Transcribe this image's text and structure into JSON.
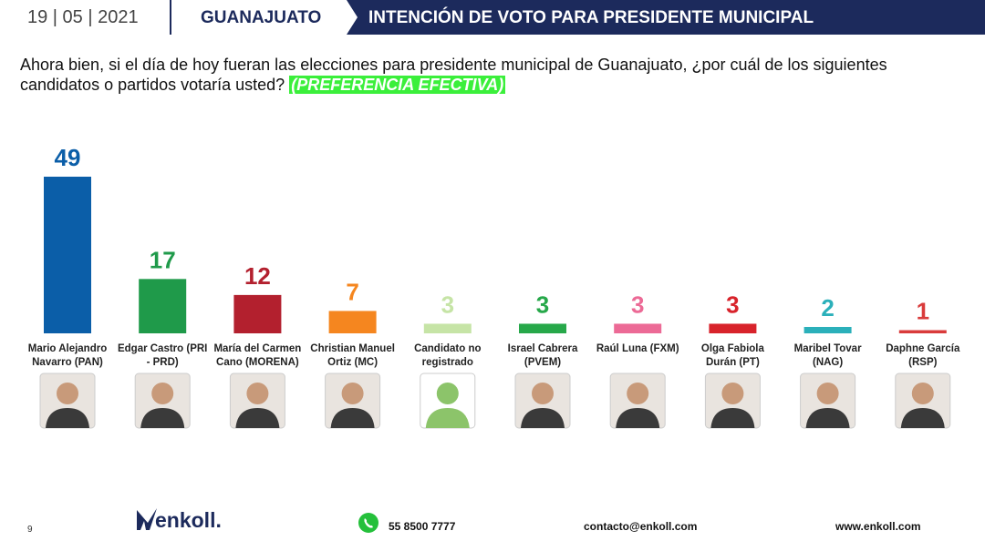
{
  "header": {
    "date": "19 | 05 | 2021",
    "place": "GUANAJUATO",
    "title": "INTENCIÓN DE VOTO PARA PRESIDENTE MUNICIPAL"
  },
  "question": {
    "text": "Ahora bien, si el día de hoy fueran las elecciones para presidente municipal de Guanajuato, ¿por cuál de los siguientes candidatos o partidos votaría usted?",
    "highlight": "(PREFERENCIA EFECTIVA)"
  },
  "chart_data": {
    "type": "bar",
    "categories": [
      "Mario Alejandro Navarro (PAN)",
      "Edgar Castro (PRI - PRD)",
      "María del Carmen Cano (MORENA)",
      "Christian Manuel Ortiz (MC)",
      "Candidato no registrado",
      "Israel Cabrera (PVEM)",
      "Raúl Luna (FXM)",
      "Olga Fabiola Durán (PT)",
      "Maribel Tovar (NAG)",
      "Daphne García (RSP)"
    ],
    "values": [
      49,
      17,
      12,
      7,
      3,
      3,
      3,
      3,
      2,
      1
    ],
    "colors": [
      "#0b5ea8",
      "#1f9a4a",
      "#b3202e",
      "#f5861f",
      "#c6e4a6",
      "#27a84a",
      "#ec6a96",
      "#d8232b",
      "#2bb0ba",
      "#d93b3b"
    ]
  },
  "footer": {
    "page": "9",
    "logo": "enkoll.",
    "phone": "55 8500 7777",
    "email": "contacto@enkoll.com",
    "web": "www.enkoll.com"
  }
}
